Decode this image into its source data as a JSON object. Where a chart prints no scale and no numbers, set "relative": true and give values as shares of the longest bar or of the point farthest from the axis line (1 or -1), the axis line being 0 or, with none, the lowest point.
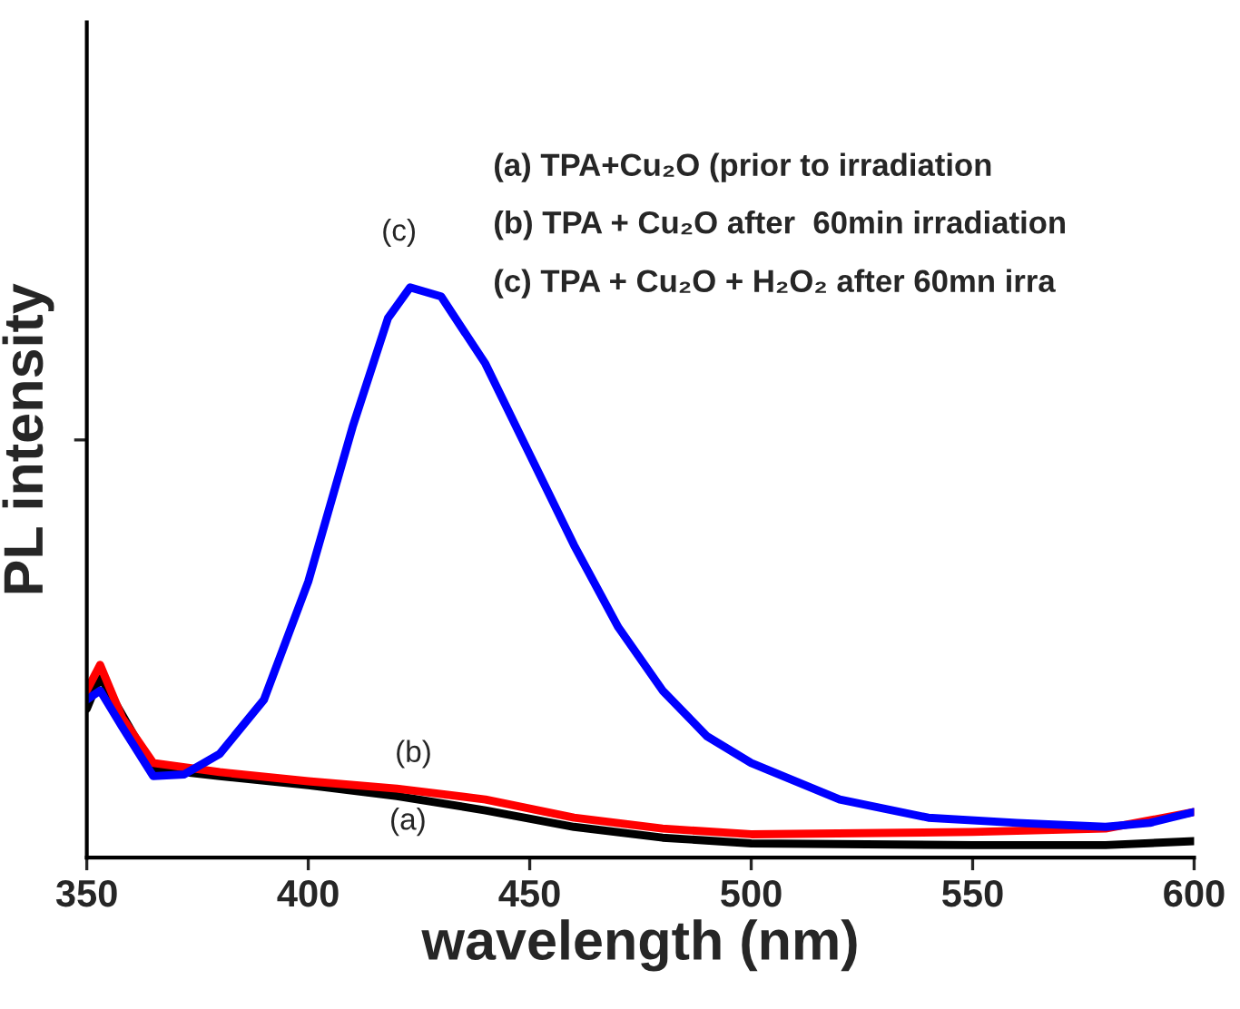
{
  "chart_data": {
    "type": "line",
    "relative": true,
    "xlabel": "wavelength (nm)",
    "ylabel": "PL intensity",
    "xlim": [
      350,
      600
    ],
    "xticks": [
      350,
      400,
      450,
      500,
      550,
      600
    ],
    "tick_labels": "x",
    "grid": false,
    "legend": false,
    "marker": "none",
    "line_style": "solid",
    "series": [
      {
        "color": "#000000",
        "x": [
          350,
          353,
          365,
          380,
          400,
          420,
          440,
          460,
          480,
          500,
          550,
          580,
          600
        ],
        "values": [
          0.261,
          0.318,
          0.156,
          0.143,
          0.127,
          0.108,
          0.083,
          0.054,
          0.035,
          0.025,
          0.022,
          0.022,
          0.029
        ]
      },
      {
        "color": "#ff0000",
        "x": [
          350,
          353,
          358,
          365,
          380,
          400,
          420,
          440,
          460,
          480,
          500,
          550,
          580,
          600
        ],
        "values": [
          0.293,
          0.338,
          0.245,
          0.166,
          0.15,
          0.134,
          0.121,
          0.102,
          0.07,
          0.051,
          0.041,
          0.045,
          0.051,
          0.08
        ]
      },
      {
        "color": "#0000ff",
        "x": [
          350,
          353,
          358,
          365,
          372,
          380,
          390,
          400,
          410,
          418,
          423,
          430,
          440,
          450,
          460,
          470,
          480,
          490,
          500,
          520,
          540,
          560,
          580,
          590,
          600
        ],
        "values": [
          0.277,
          0.293,
          0.229,
          0.143,
          0.146,
          0.182,
          0.277,
          0.484,
          0.755,
          0.946,
          1,
          0.984,
          0.866,
          0.707,
          0.548,
          0.404,
          0.293,
          0.213,
          0.166,
          0.102,
          0.07,
          0.061,
          0.054,
          0.061,
          0.08
        ]
      }
    ],
    "annotations": [
      "(a)",
      "(b)",
      "(c)",
      "(a) TPA+Cu₂O (prior to irradiation",
      "(b) TPA + Cu₂O after  60min irradiation",
      "(c) TPA + Cu₂O + H₂O₂ after 60mn irra"
    ]
  }
}
